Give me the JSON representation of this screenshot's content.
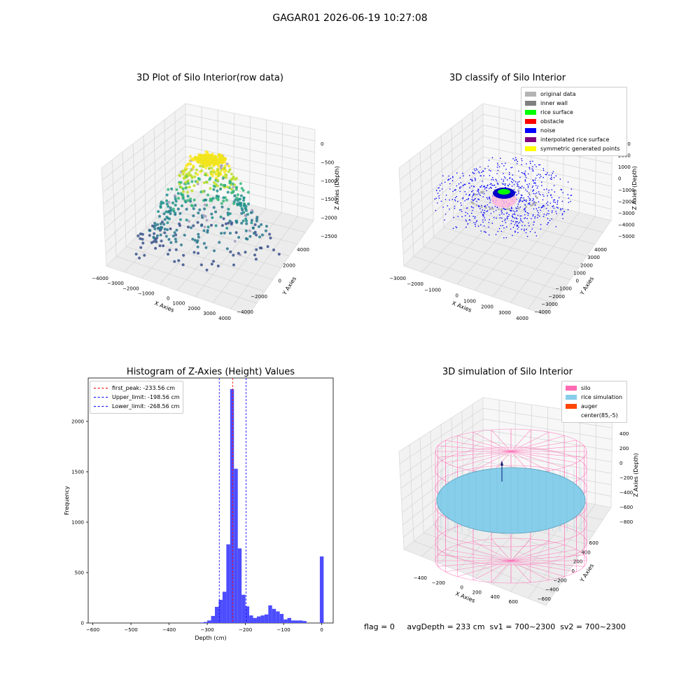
{
  "figure": {
    "suptitle": "GAGAR01 2026-06-19 10:27:08",
    "footer": "flag = 0     avgDepth = 233 cm  sv1 = 700~2300  sv2 = 700~2300"
  },
  "panels": {
    "raw": {
      "title": "3D Plot of Silo Interior(row data)",
      "xlabel": "X Axies",
      "ylabel": "Y Axies",
      "zlabel": "Z Axies (Depth)",
      "xticks": [
        "−4000",
        "−3000",
        "−2000",
        "−1000",
        "0",
        "1000",
        "2000",
        "3000",
        "4000"
      ],
      "yticks": [
        "−4000",
        "−2000",
        "0",
        "2000",
        "4000"
      ],
      "zticks": [
        "0",
        "−500",
        "−1000",
        "−1500",
        "−2000",
        "−2500"
      ]
    },
    "classify": {
      "title": "3D classify of Silo Interior",
      "xlabel": "X Axies",
      "ylabel": "Y Axies",
      "zlabel": "Z Axies (Depth)",
      "xticks": [
        "−3000",
        "−2000",
        "−1000",
        "0",
        "1000",
        "2000",
        "3000",
        "4000"
      ],
      "yticks": [
        "−4000",
        "−3000",
        "−2000",
        "−1000",
        "0",
        "1000",
        "2000",
        "3000",
        "4000"
      ],
      "zticks": [
        "3000",
        "2000",
        "1000",
        "0",
        "−1000",
        "−2000",
        "−3000",
        "−4000",
        "−5000"
      ],
      "legend": [
        {
          "label": "original data",
          "color": "#b3b3b3"
        },
        {
          "label": "inner wall",
          "color": "#808080"
        },
        {
          "label": "rice surface",
          "color": "#00ff00"
        },
        {
          "label": "obstacle",
          "color": "#ff0000"
        },
        {
          "label": "noise",
          "color": "#0000ff"
        },
        {
          "label": "interpolated rice surface",
          "color": "#800080"
        },
        {
          "label": "symmetric generated points",
          "color": "#ffff00"
        }
      ]
    },
    "simulation": {
      "title": "3D simulation of Silo Interior",
      "xlabel": "X Axies",
      "ylabel": "Y Axies",
      "zlabel": "Z Axies (Depth)",
      "xticks": [
        "−400",
        "−200",
        "0",
        "200",
        "400",
        "600"
      ],
      "yticks": [
        "−600",
        "−400",
        "−200",
        "0",
        "200",
        "400",
        "600"
      ],
      "zticks": [
        "400",
        "200",
        "0",
        "−200",
        "−400",
        "−600",
        "−800"
      ],
      "legend": [
        {
          "label": "silo",
          "color": "#ff69b4"
        },
        {
          "label": "rice simulation",
          "color": "#87ceeb"
        },
        {
          "label": "auger",
          "color": "#ff4500"
        },
        {
          "label": "center(85,-5)",
          "color": "#ffffff"
        }
      ]
    }
  },
  "chart_data": {
    "type": "bar",
    "title": "Histogram of Z-Axies (Height) Values",
    "xlabel": "Depth (cm)",
    "ylabel": "Frequency",
    "xlim": [
      -612,
      30
    ],
    "ylim": [
      0,
      2430
    ],
    "xticks": [
      -600,
      -500,
      -400,
      -300,
      -200,
      -100,
      0
    ],
    "yticks": [
      0,
      500,
      1000,
      1500,
      2000
    ],
    "bin_width": 10,
    "bins": [
      {
        "x0": -320,
        "value": 5
      },
      {
        "x0": -310,
        "value": 10
      },
      {
        "x0": -300,
        "value": 25
      },
      {
        "x0": -290,
        "value": 70
      },
      {
        "x0": -280,
        "value": 160
      },
      {
        "x0": -270,
        "value": 230
      },
      {
        "x0": -260,
        "value": 310
      },
      {
        "x0": -250,
        "value": 780
      },
      {
        "x0": -240,
        "value": 2320
      },
      {
        "x0": -230,
        "value": 1530
      },
      {
        "x0": -220,
        "value": 740
      },
      {
        "x0": -210,
        "value": 280
      },
      {
        "x0": -200,
        "value": 165
      },
      {
        "x0": -190,
        "value": 75
      },
      {
        "x0": -180,
        "value": 50
      },
      {
        "x0": -170,
        "value": 65
      },
      {
        "x0": -160,
        "value": 75
      },
      {
        "x0": -150,
        "value": 85
      },
      {
        "x0": -140,
        "value": 175
      },
      {
        "x0": -130,
        "value": 140
      },
      {
        "x0": -120,
        "value": 115
      },
      {
        "x0": -110,
        "value": 90
      },
      {
        "x0": -100,
        "value": 35
      },
      {
        "x0": -90,
        "value": 50
      },
      {
        "x0": -80,
        "value": 25
      },
      {
        "x0": -70,
        "value": 25
      },
      {
        "x0": -60,
        "value": 25
      },
      {
        "x0": -50,
        "value": 20
      },
      {
        "x0": -5,
        "value": 660
      }
    ],
    "vlines": [
      {
        "label": "first_peak: -233.56 cm",
        "x": -233.56,
        "color": "#ff0000"
      },
      {
        "label": "Upper_limit: -198.56 cm",
        "x": -198.56,
        "color": "#0000ff"
      },
      {
        "label": "Lower_limit: -268.56 cm",
        "x": -268.56,
        "color": "#0000ff"
      }
    ],
    "bar_color": "#4d4dff"
  }
}
